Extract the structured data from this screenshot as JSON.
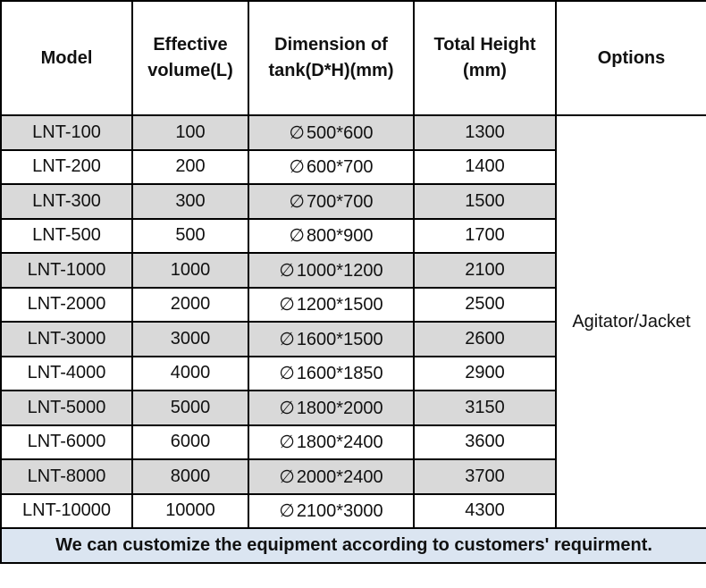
{
  "header": {
    "model": "Model",
    "volume": "Effective volume(L)",
    "dimension": "Dimension of tank(D*H)(mm)",
    "height": "Total Height (mm)",
    "options": "Options"
  },
  "diameter_symbol": "∅",
  "rows": [
    {
      "model": "LNT-100",
      "volume": "100",
      "dimension": "500*600",
      "height": "1300"
    },
    {
      "model": "LNT-200",
      "volume": "200",
      "dimension": "600*700",
      "height": "1400"
    },
    {
      "model": "LNT-300",
      "volume": "300",
      "dimension": "700*700",
      "height": "1500"
    },
    {
      "model": "LNT-500",
      "volume": "500",
      "dimension": "800*900",
      "height": "1700"
    },
    {
      "model": "LNT-1000",
      "volume": "1000",
      "dimension": "1000*1200",
      "height": "2100"
    },
    {
      "model": "LNT-2000",
      "volume": "2000",
      "dimension": "1200*1500",
      "height": "2500"
    },
    {
      "model": "LNT-3000",
      "volume": "3000",
      "dimension": "1600*1500",
      "height": "2600"
    },
    {
      "model": "LNT-4000",
      "volume": "4000",
      "dimension": "1600*1850",
      "height": "2900"
    },
    {
      "model": "LNT-5000",
      "volume": "5000",
      "dimension": "1800*2000",
      "height": "3150"
    },
    {
      "model": "LNT-6000",
      "volume": "6000",
      "dimension": "1800*2400",
      "height": "3600"
    },
    {
      "model": "LNT-8000",
      "volume": "8000",
      "dimension": "2000*2400",
      "height": "3700"
    },
    {
      "model": "LNT-10000",
      "volume": "10000",
      "dimension": "2100*3000",
      "height": "4300"
    }
  ],
  "options_value": "Agitator/Jacket",
  "footer": "We can customize the equipment according to customers' requirment.",
  "colors": {
    "shaded_row": "#d9d9d9",
    "footer_background": "#dbe5f1",
    "border": "#000000"
  }
}
